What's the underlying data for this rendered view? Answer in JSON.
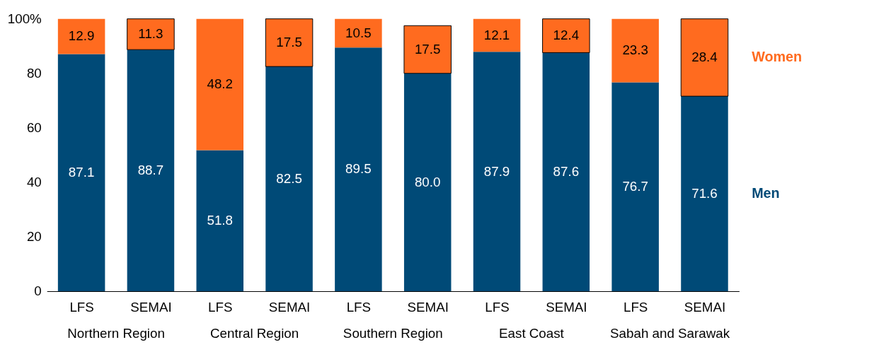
{
  "chart_data": {
    "type": "bar",
    "stacked": true,
    "categories": [
      "LFS",
      "SEMAI",
      "LFS",
      "SEMAI",
      "LFS",
      "SEMAI",
      "LFS",
      "SEMAI",
      "LFS",
      "SEMAI"
    ],
    "series": [
      {
        "name": "Men",
        "color": "#004a77",
        "values": [
          87.1,
          88.7,
          51.8,
          82.5,
          89.5,
          80.0,
          87.9,
          87.6,
          76.7,
          71.6
        ],
        "value_labels": [
          "87.1",
          "88.7",
          "51.8",
          "82.5",
          "89.5",
          "80.0",
          "87.9",
          "87.6",
          "76.7",
          "71.6"
        ]
      },
      {
        "name": "Women",
        "color": "#ff6b1f",
        "values": [
          12.9,
          11.3,
          48.2,
          17.5,
          10.5,
          17.5,
          12.1,
          12.4,
          23.3,
          28.4
        ]
      }
    ],
    "ylim": [
      0,
      100
    ],
    "yticks": [
      0,
      20,
      40,
      60,
      80,
      {
        "value": 100,
        "label": "100%"
      }
    ],
    "data_labels": true,
    "grid": false,
    "legend": "right",
    "annotations": [
      "Northern Region",
      "Central Region",
      "Southern Region",
      "East Coast",
      "Sabah and Sarawak"
    ]
  }
}
